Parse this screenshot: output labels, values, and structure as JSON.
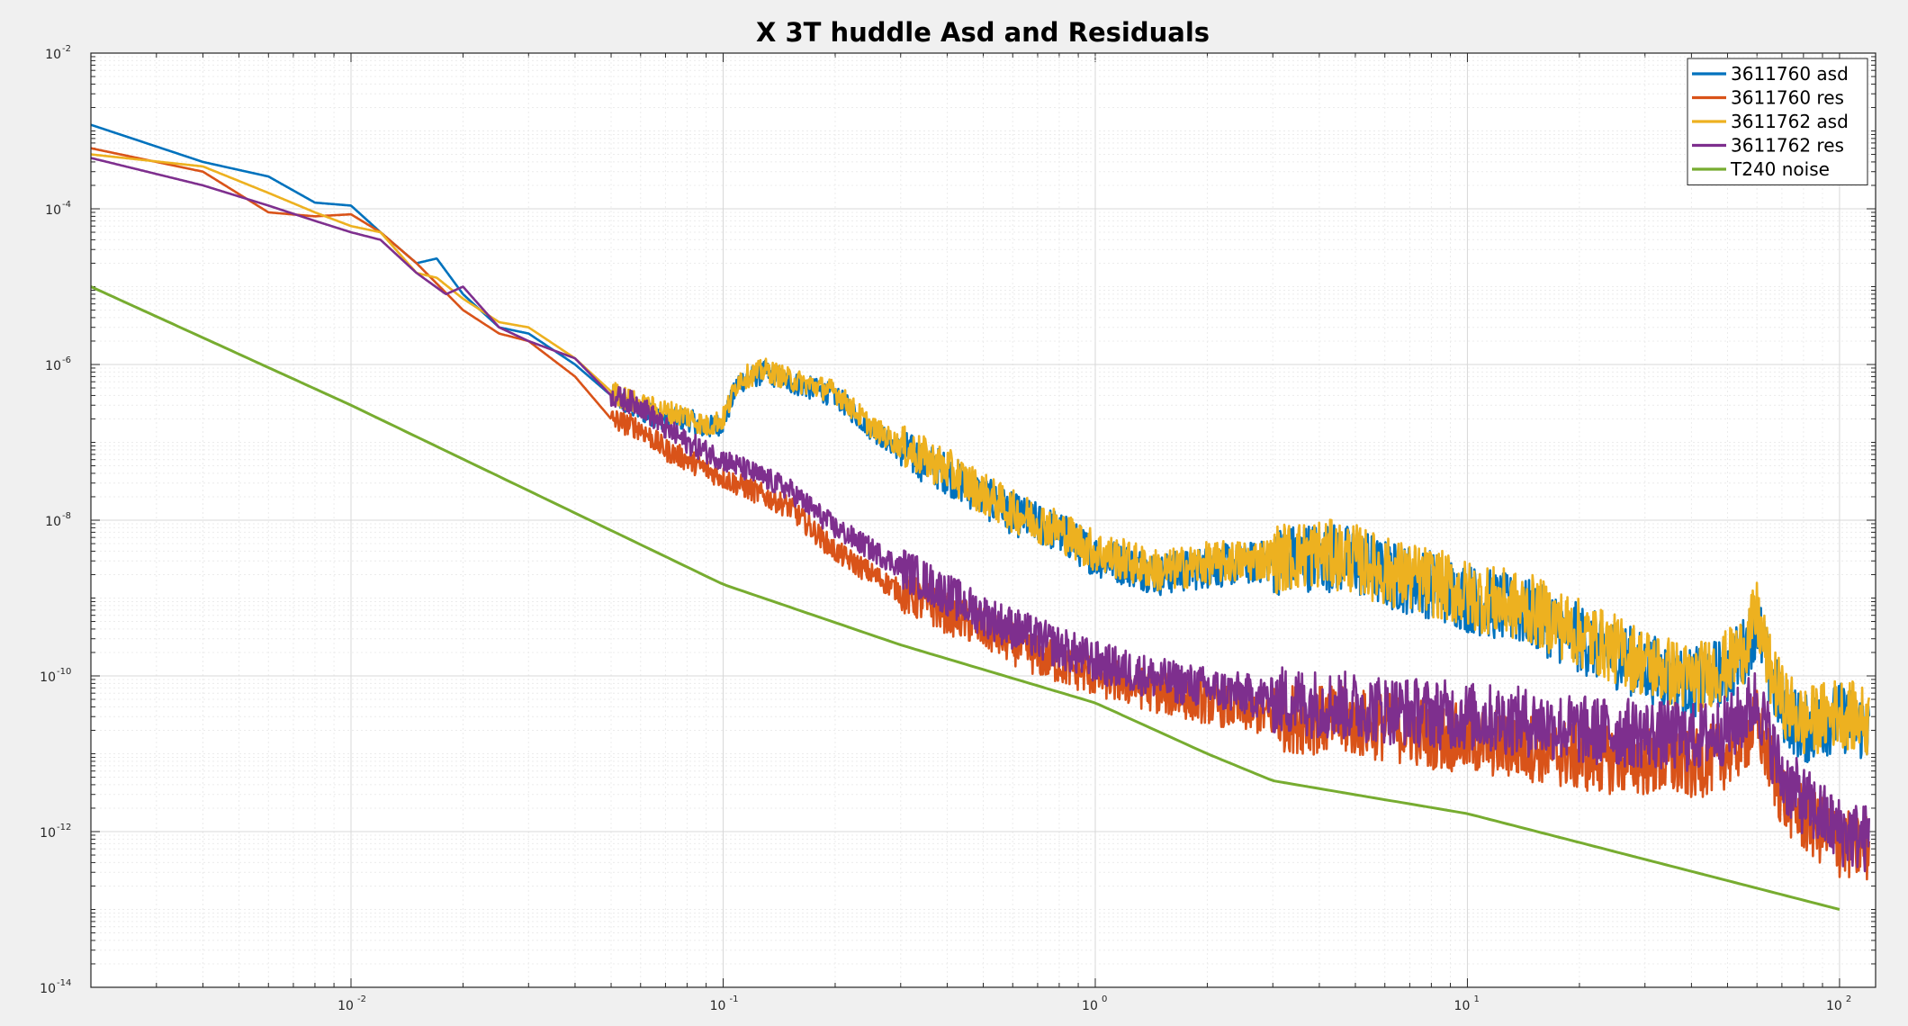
{
  "chart_data": {
    "type": "line",
    "title": "X 3T huddle Asd and Residuals",
    "xlabel": "",
    "ylabel": "",
    "x_scale": "log",
    "y_scale": "log",
    "xlim": [
      0.002,
      125
    ],
    "ylim": [
      1e-14,
      0.01
    ],
    "grid": true,
    "minor_grid": true,
    "legend_position": "top-right",
    "x_ticks": [
      {
        "value": 0.01,
        "base": "10",
        "exp": "-2"
      },
      {
        "value": 0.1,
        "base": "10",
        "exp": "-1"
      },
      {
        "value": 1,
        "base": "10",
        "exp": "0"
      },
      {
        "value": 10,
        "base": "10",
        "exp": "1"
      },
      {
        "value": 100,
        "base": "10",
        "exp": "2"
      }
    ],
    "y_ticks": [
      {
        "value": 0.01,
        "base": "10",
        "exp": "-2"
      },
      {
        "value": 0.0001,
        "base": "10",
        "exp": "-4"
      },
      {
        "value": 1e-06,
        "base": "10",
        "exp": "-6"
      },
      {
        "value": 1e-08,
        "base": "10",
        "exp": "-8"
      },
      {
        "value": 1e-10,
        "base": "10",
        "exp": "-10"
      },
      {
        "value": 1e-12,
        "base": "10",
        "exp": "-12"
      },
      {
        "value": 1e-14,
        "base": "10",
        "exp": "-14"
      }
    ],
    "series": [
      {
        "name": "3611760  asd",
        "color": "#0072BD",
        "x": [
          0.002,
          0.004,
          0.006,
          0.008,
          0.01,
          0.012,
          0.015,
          0.017,
          0.02,
          0.025,
          0.03,
          0.04,
          0.05,
          0.06,
          0.07,
          0.08,
          0.09,
          0.1,
          0.11,
          0.13,
          0.15,
          0.2,
          0.25,
          0.3,
          0.4,
          0.5,
          0.6,
          0.8,
          1.0,
          1.5,
          2,
          3,
          4,
          5,
          6,
          8,
          10,
          15,
          20,
          30,
          40,
          50,
          55,
          60,
          65,
          70,
          80,
          100,
          120
        ],
        "y": [
          0.0012,
          0.0004,
          0.00026,
          0.00012,
          0.00011,
          5e-05,
          2e-05,
          2.3e-05,
          8e-06,
          3e-06,
          2.5e-06,
          1e-06,
          4e-07,
          2.5e-07,
          2e-07,
          2e-07,
          1.5e-07,
          1.8e-07,
          6e-07,
          8e-07,
          6e-07,
          4e-07,
          1.5e-07,
          8e-08,
          4e-08,
          2e-08,
          1.2e-08,
          7e-09,
          3.5e-09,
          2e-09,
          2.5e-09,
          3e-09,
          3.5e-09,
          3e-09,
          2e-09,
          1.5e-09,
          1e-09,
          6e-10,
          3e-10,
          1.3e-10,
          8e-11,
          1.2e-10,
          2e-10,
          5e-10,
          1e-10,
          4e-11,
          2e-11,
          3e-11,
          2e-11
        ]
      },
      {
        "name": "3611760 res",
        "color": "#D95319",
        "x": [
          0.002,
          0.004,
          0.006,
          0.008,
          0.01,
          0.012,
          0.015,
          0.02,
          0.025,
          0.03,
          0.04,
          0.05,
          0.06,
          0.07,
          0.08,
          0.1,
          0.15,
          0.2,
          0.3,
          0.5,
          0.7,
          1.0,
          1.5,
          2,
          3,
          5,
          7,
          10,
          15,
          20,
          30,
          40,
          50,
          55,
          60,
          65,
          70,
          80,
          100,
          120
        ],
        "y": [
          0.0006,
          0.0003,
          9e-05,
          8e-05,
          8.5e-05,
          5e-05,
          2e-05,
          5e-06,
          2.5e-06,
          2e-06,
          7e-07,
          2e-07,
          1.5e-07,
          8e-08,
          6e-08,
          3.5e-08,
          1.5e-08,
          4e-09,
          1.2e-09,
          4e-10,
          1.8e-10,
          1e-10,
          6e-11,
          4.5e-11,
          3e-11,
          2.5e-11,
          2e-11,
          1.5e-11,
          1.2e-11,
          9e-12,
          8e-12,
          7e-12,
          1e-11,
          1.5e-11,
          2.5e-11,
          8e-12,
          3e-12,
          1.5e-12,
          7e-13,
          6e-13
        ]
      },
      {
        "name": "3611762 asd",
        "color": "#EDB120",
        "x": [
          0.002,
          0.004,
          0.006,
          0.008,
          0.01,
          0.012,
          0.015,
          0.017,
          0.02,
          0.025,
          0.03,
          0.04,
          0.05,
          0.06,
          0.07,
          0.08,
          0.09,
          0.1,
          0.11,
          0.13,
          0.15,
          0.2,
          0.25,
          0.3,
          0.4,
          0.5,
          0.6,
          0.8,
          1.0,
          1.5,
          2,
          3,
          4,
          5,
          6,
          8,
          10,
          15,
          20,
          30,
          40,
          50,
          55,
          60,
          65,
          70,
          80,
          100,
          120
        ],
        "y": [
          0.0005,
          0.00035,
          0.00016,
          9e-05,
          6e-05,
          5e-05,
          1.5e-05,
          1.3e-05,
          7e-06,
          3.5e-06,
          3e-06,
          1.2e-06,
          4.5e-07,
          3e-07,
          2.5e-07,
          2.2e-07,
          1.6e-07,
          2e-07,
          6.5e-07,
          8.5e-07,
          6.5e-07,
          4.5e-07,
          1.6e-07,
          9e-08,
          4.5e-08,
          2.2e-08,
          1.3e-08,
          7.5e-09,
          4e-09,
          2.2e-09,
          2.8e-09,
          3.2e-09,
          3.8e-09,
          3.2e-09,
          2.2e-09,
          1.6e-09,
          1.1e-09,
          7e-10,
          3.5e-10,
          1.5e-10,
          9e-11,
          1.4e-10,
          2.2e-10,
          6e-10,
          1.2e-10,
          5e-11,
          2.5e-11,
          3.5e-11,
          2.5e-11
        ]
      },
      {
        "name": "3611762 res",
        "color": "#7E2F8E",
        "x": [
          0.002,
          0.004,
          0.006,
          0.008,
          0.01,
          0.012,
          0.015,
          0.018,
          0.02,
          0.025,
          0.03,
          0.04,
          0.05,
          0.06,
          0.07,
          0.08,
          0.1,
          0.15,
          0.2,
          0.3,
          0.5,
          0.7,
          1.0,
          1.5,
          2,
          3,
          5,
          7,
          10,
          15,
          20,
          30,
          40,
          50,
          55,
          60,
          65,
          70,
          80,
          100,
          120
        ],
        "y": [
          0.00045,
          0.0002,
          0.00011,
          7e-05,
          5e-05,
          4e-05,
          1.5e-05,
          8e-06,
          1e-05,
          3e-06,
          2e-06,
          1.2e-06,
          4e-07,
          3e-07,
          1.5e-07,
          1e-07,
          6e-08,
          2.5e-08,
          8e-09,
          2.5e-09,
          6e-10,
          3e-10,
          1.5e-10,
          9e-11,
          7e-11,
          5e-11,
          4e-11,
          3.5e-11,
          3e-11,
          2.5e-11,
          2e-11,
          1.8e-11,
          1.6e-11,
          2e-11,
          3e-11,
          5e-11,
          1.5e-11,
          5e-12,
          2.5e-12,
          1e-12,
          8e-13
        ]
      },
      {
        "name": "T240 noise",
        "color": "#77AC30",
        "x": [
          0.002,
          0.01,
          0.1,
          0.3,
          1,
          2,
          3,
          10,
          100
        ],
        "y": [
          1e-05,
          3e-07,
          1.5e-09,
          2.5e-10,
          4.5e-11,
          1e-11,
          4.5e-12,
          1.7e-12,
          1e-13
        ]
      }
    ]
  }
}
